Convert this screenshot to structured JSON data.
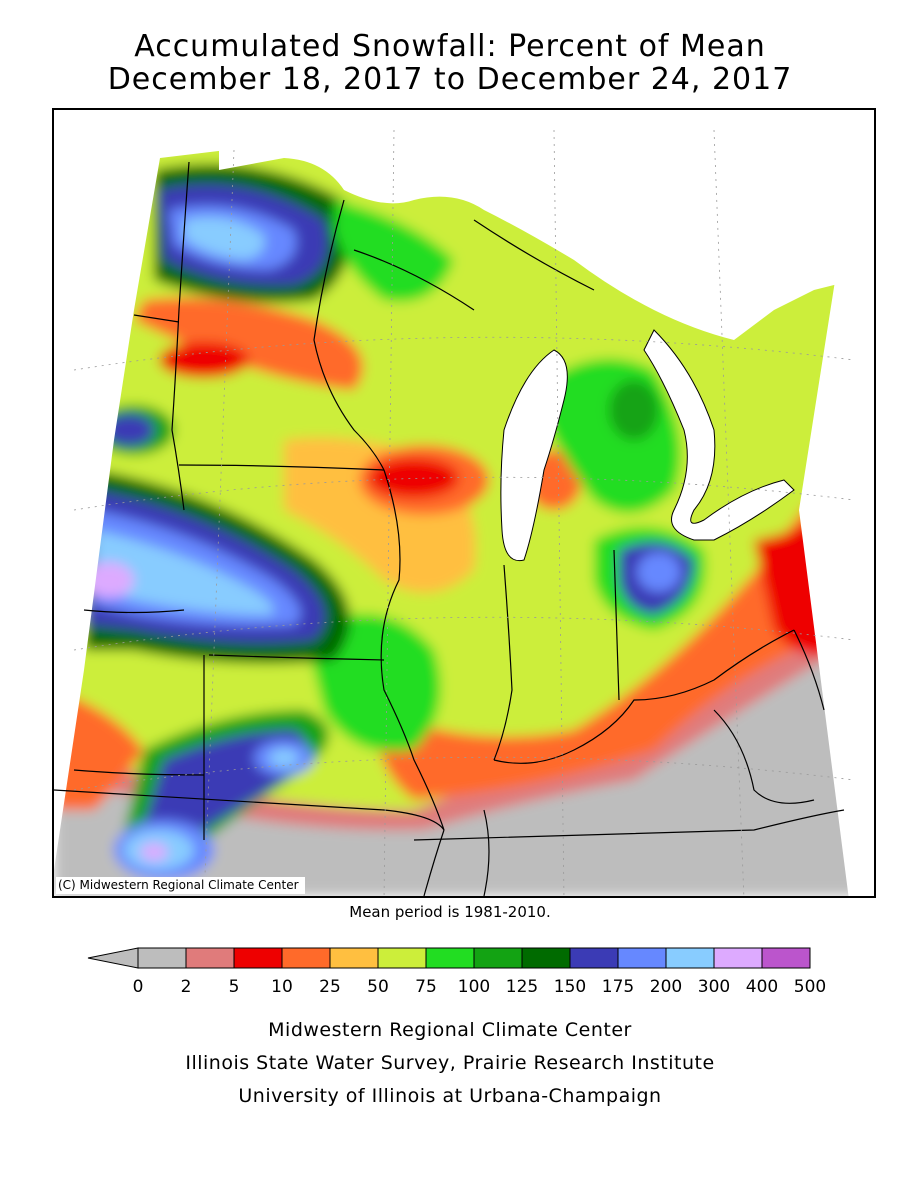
{
  "title_line1": "Accumulated Snowfall: Percent of Mean",
  "title_line2": "December 18, 2017 to December 24, 2017",
  "copyright": "(C) Midwestern Regional Climate Center",
  "mean_period": "Mean period is 1981-2010.",
  "legend": {
    "labels": [
      "0",
      "2",
      "5",
      "10",
      "25",
      "50",
      "75",
      "100",
      "125",
      "150",
      "175",
      "200",
      "300",
      "400",
      "500"
    ],
    "colors": [
      "#bdbdbd",
      "#e07b7b",
      "#ee0000",
      "#ff6a2a",
      "#ffbf40",
      "#ccee3a",
      "#22dd22",
      "#13a313",
      "#006b00",
      "#3b3bb5",
      "#6688ff",
      "#88ccff",
      "#ddaaff",
      "#bb55cc"
    ]
  },
  "credits": [
    "Midwestern Regional Climate Center",
    "Illinois State Water Survey, Prairie Research Institute",
    "University of Illinois at Urbana-Champaign"
  ],
  "map_colors": {
    "gray": "#bdbdbd",
    "pink": "#e07b7b",
    "red": "#ee0000",
    "orange": "#ff6a2a",
    "lightorange": "#ffbf40",
    "yellowgreen": "#ccee3a",
    "green": "#22dd22",
    "midgreen": "#13a313",
    "darkgreen": "#006b00",
    "navy": "#3b3bb5",
    "blue": "#6688ff",
    "lightblue": "#88ccff",
    "lavender": "#ddaaff"
  }
}
